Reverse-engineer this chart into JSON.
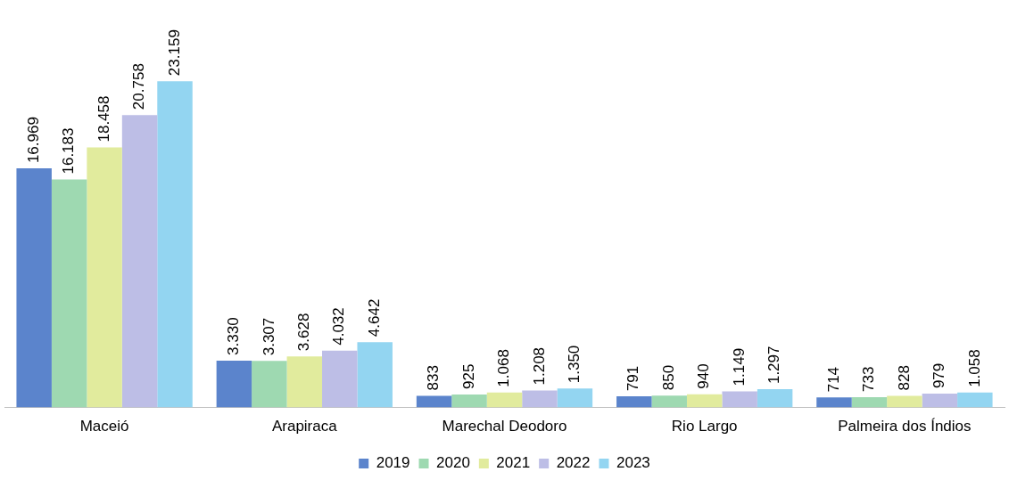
{
  "chart_data": {
    "type": "bar",
    "categories": [
      "Maceió",
      "Arapiraca",
      "Marechal Deodoro",
      "Rio Largo",
      "Palmeira dos Índios"
    ],
    "series": [
      {
        "name": "2019",
        "color": "#5b84cc",
        "values": [
          16969,
          3330,
          833,
          791,
          714
        ],
        "value_labels": [
          "16.969",
          "3.330",
          "833",
          "791",
          "714"
        ]
      },
      {
        "name": "2020",
        "color": "#9ed9b1",
        "values": [
          16183,
          3307,
          925,
          850,
          733
        ],
        "value_labels": [
          "16.183",
          "3.307",
          "925",
          "850",
          "733"
        ]
      },
      {
        "name": "2021",
        "color": "#e1eb9d",
        "values": [
          18458,
          3628,
          1068,
          940,
          828
        ],
        "value_labels": [
          "18.458",
          "3.628",
          "1.068",
          "940",
          "828"
        ]
      },
      {
        "name": "2022",
        "color": "#bdbee6",
        "values": [
          20758,
          4032,
          1208,
          1149,
          979
        ],
        "value_labels": [
          "20.758",
          "4.032",
          "1.208",
          "1.149",
          "979"
        ]
      },
      {
        "name": "2023",
        "color": "#93d5f1",
        "values": [
          23159,
          4642,
          1350,
          1297,
          1058
        ],
        "value_labels": [
          "23.159",
          "4.642",
          "1.350",
          "1.297",
          "1.058"
        ]
      }
    ],
    "grid": false,
    "legend": "bottom"
  }
}
